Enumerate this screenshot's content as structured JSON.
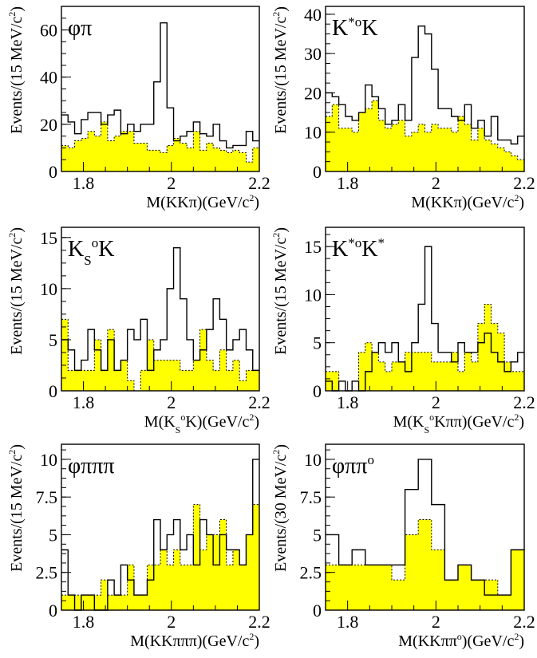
{
  "colors": {
    "signal_line": "#000000",
    "background_fill": "#ffff00"
  },
  "chart_data": [
    {
      "type": "bar",
      "title": "φπ",
      "xlabel": "M(KKπ)(GeV/c²)",
      "ylabel": "Events/(15 MeV/c²)",
      "x_ticks": [
        "1.8",
        "2",
        "2.2"
      ],
      "y_ticks": [
        "0",
        "20",
        "40",
        "60"
      ],
      "xlim": [
        1.75,
        2.2
      ],
      "ylim": [
        0,
        70
      ],
      "bin_width": 0.015,
      "series": [
        {
          "values": [
            24,
            21,
            16,
            22,
            25,
            25,
            20,
            24,
            26,
            16,
            20,
            17,
            20,
            20,
            38,
            63,
            27,
            13,
            15,
            17,
            21,
            16,
            15,
            20,
            13,
            10,
            11,
            11,
            17,
            13
          ]
        },
        {
          "values": [
            11,
            10,
            13,
            14,
            17,
            15,
            21,
            13,
            15,
            17,
            17,
            12,
            12,
            9,
            9,
            8,
            11,
            14,
            12,
            10,
            17,
            9,
            12,
            10,
            9,
            8,
            9,
            8,
            4,
            10
          ]
        }
      ]
    },
    {
      "type": "bar",
      "title": "K*°K",
      "xlabel": "M(KKπ)(GeV/c²)",
      "ylabel": "Events/(15 MeV/c²)",
      "x_ticks": [
        "1.8",
        "2",
        "2.2"
      ],
      "y_ticks": [
        "0",
        "10",
        "20",
        "30",
        "40"
      ],
      "xlim": [
        1.75,
        2.2
      ],
      "ylim": [
        0,
        42
      ],
      "bin_width": 0.015,
      "series": [
        {
          "values": [
            20,
            19,
            17,
            14,
            13,
            15,
            22,
            19,
            16,
            12,
            13,
            17,
            13,
            29,
            37,
            35,
            26,
            16,
            16,
            14,
            13,
            17,
            11,
            13,
            9,
            14,
            8,
            8,
            7,
            9
          ]
        },
        {
          "values": [
            14,
            17,
            11,
            11,
            10,
            15,
            16,
            18,
            13,
            11,
            12,
            13,
            9,
            10,
            12,
            10,
            12,
            11,
            11,
            10,
            14,
            12,
            8,
            11,
            8,
            7,
            6,
            5,
            4,
            3
          ]
        }
      ]
    },
    {
      "type": "bar",
      "title": "K_S°K",
      "xlabel": "M(K_S°K)(GeV/c²)",
      "ylabel": "Events/(15 MeV/c²)",
      "x_ticks": [
        "1.8",
        "2",
        "2.2"
      ],
      "y_ticks": [
        "0",
        "5",
        "10",
        "15"
      ],
      "xlim": [
        1.75,
        2.2
      ],
      "ylim": [
        0,
        16
      ],
      "bin_width": 0.015,
      "series": [
        {
          "values": [
            5,
            4,
            2,
            3,
            6,
            4,
            2,
            5,
            2,
            3,
            6,
            5,
            7,
            2,
            4,
            5,
            10,
            14,
            9,
            5,
            3,
            4,
            6,
            9,
            7,
            4,
            5,
            6,
            4,
            2
          ]
        },
        {
          "values": [
            7,
            2,
            2,
            2,
            2,
            5,
            2,
            6,
            2,
            3,
            1,
            0,
            2,
            5,
            3,
            3,
            3,
            3,
            2,
            2,
            3,
            6,
            3,
            2,
            4,
            2,
            3,
            1,
            2,
            2
          ]
        }
      ]
    },
    {
      "type": "bar",
      "title": "K*°K*",
      "xlabel": "M(K_S°Kππ)(GeV/c²)",
      "ylabel": "Events/(15 MeV/c²)",
      "x_ticks": [
        "1.8",
        "2",
        "2.2"
      ],
      "y_ticks": [
        "0",
        "5",
        "10",
        "15"
      ],
      "xlim": [
        1.75,
        2.2
      ],
      "ylim": [
        0,
        17
      ],
      "bin_width": 0.015,
      "series": [
        {
          "values": [
            1,
            0,
            1,
            0,
            1,
            0,
            2,
            4,
            5,
            4,
            5,
            3,
            2,
            5,
            9,
            15,
            7,
            4,
            4,
            3,
            5,
            4,
            4,
            5,
            6,
            4,
            3,
            2,
            3,
            4
          ]
        },
        {
          "values": [
            2,
            2,
            0,
            0,
            0,
            4,
            5,
            4,
            3,
            2,
            3,
            3,
            4,
            4,
            4,
            4,
            3,
            3,
            3,
            4,
            2,
            4,
            3,
            7,
            9,
            7,
            6,
            3,
            2,
            2
          ]
        }
      ]
    },
    {
      "type": "bar",
      "title": "φπππ",
      "xlabel": "M(KKπππ)(GeV/c²)",
      "ylabel": "Events/(15 MeV/c²)",
      "x_ticks": [
        "1.8",
        "2",
        "2.2"
      ],
      "y_ticks": [
        "0",
        "2.5",
        "5",
        "7.5",
        "10"
      ],
      "xlim": [
        1.75,
        2.2
      ],
      "ylim": [
        0,
        11
      ],
      "bin_width": 0.015,
      "series": [
        {
          "values": [
            4,
            1,
            0,
            1,
            1,
            0,
            0,
            2,
            1,
            3,
            2,
            1,
            1,
            2,
            6,
            4,
            5,
            6,
            4,
            5,
            3,
            6,
            5,
            3,
            5,
            4,
            4,
            3,
            5,
            10
          ]
        },
        {
          "values": [
            1,
            1,
            1,
            1,
            1,
            1,
            2,
            1,
            1,
            1,
            3,
            1,
            1,
            3,
            3,
            4,
            3,
            4,
            3,
            3,
            7,
            4,
            5,
            5,
            6,
            3,
            4,
            3,
            5,
            7
          ]
        }
      ]
    },
    {
      "type": "bar",
      "title": "φππ°",
      "xlabel": "M(KKππ°)(GeV/c²)",
      "ylabel": "Events/(30 MeV/c²)",
      "x_ticks": [
        "1.8",
        "2",
        "2.2"
      ],
      "y_ticks": [
        "0",
        "2.5",
        "5",
        "7.5",
        "10"
      ],
      "xlim": [
        1.75,
        2.2
      ],
      "ylim": [
        0,
        11
      ],
      "bin_width": 0.03,
      "series": [
        {
          "values": [
            5,
            3,
            4,
            3,
            3,
            3,
            8,
            10,
            7,
            2,
            3,
            2,
            1,
            1,
            4
          ]
        },
        {
          "values": [
            3,
            3,
            3,
            3,
            3,
            2,
            5,
            6,
            4,
            2,
            3,
            2,
            2,
            1,
            4
          ]
        }
      ]
    }
  ]
}
